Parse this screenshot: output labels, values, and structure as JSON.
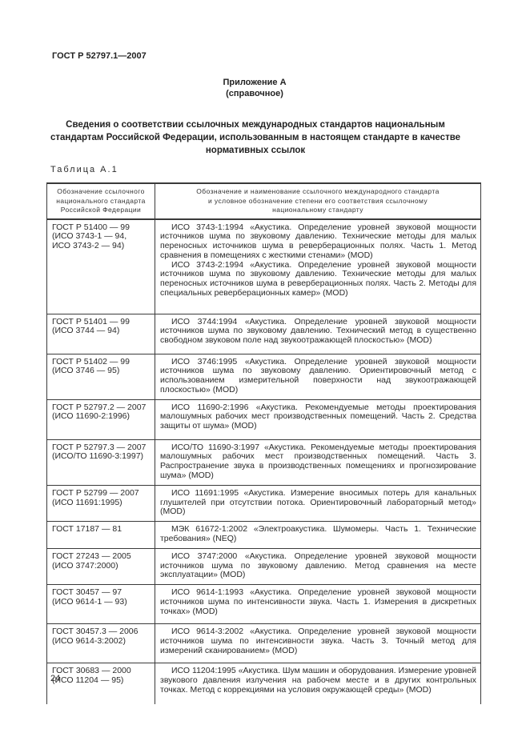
{
  "page": {
    "doc_code": "ГОСТ Р 52797.1—2007",
    "appendix_heading": "Приложение А",
    "appendix_kind": "(справочное)",
    "title": "Сведения о соответствии ссылочных международных стандартов национальным стандартам Российской Федерации, использованным в настоящем стандарте в качестве нормативных ссылок",
    "table_caption": "Таблица А.1",
    "page_number": "24"
  },
  "table": {
    "headers": [
      "Обозначение ссылочного\nнационального стандарта\nРоссийской Федерации",
      "Обозначение и наименование ссылочного международного стандарта\nи условное обозначение степени его соответствия ссылочному\nнациональному стандарту"
    ],
    "rows": [
      {
        "national": "ГОСТ Р 51400 — 99\n(ИСО 3743-1 — 94,\nИСО 3743-2 — 94)",
        "international": [
          "ИСО 3743-1:1994 «Акустика. Определение уровней звуковой мощности источников шума по звуковому давлению. Технические методы для малых переносных источников шума в реверберационных полях. Часть 1. Метод сравнения в помещениях с жесткими стенами» (MOD)",
          "ИСО 3743-2:1994 «Акустика. Определение уровней звуковой мощности источников шума по звуковому давлению. Технические методы для малых переносных источников шума в реверберационных полях. Часть 2. Методы для специальных реверберационных камер» (MOD)"
        ]
      },
      {
        "national": "ГОСТ Р 51401 — 99\n(ИСО 3744 — 94)",
        "international": [
          "ИСО 3744:1994 «Акустика. Определение уровней звуковой мощности источников шума по звуковому давлению. Технический метод в существенно свободном звуковом поле над звукоотражающей плоскостью» (MOD)"
        ]
      },
      {
        "national": "ГОСТ Р 51402 — 99\n(ИСО 3746 — 95)",
        "international": [
          "ИСО 3746:1995 «Акустика. Определение уровней звуковой мощности источников шума по звуковому давлению. Ориентировочный метод с использованием измерительной поверхности над звукоотражающей плоскостью» (MOD)"
        ]
      },
      {
        "national": "ГОСТ Р 52797.2 — 2007\n(ИСО 11690-2:1996)",
        "international": [
          "ИСО 11690-2:1996 «Акустика. Рекомендуемые методы проектирования малошумных рабочих мест производственных помещений. Часть 2. Средства защиты от шума» (MOD)"
        ]
      },
      {
        "national": "ГОСТ Р 52797.3 — 2007\n(ИСО/ТО 11690-3:1997)",
        "international": [
          "ИСО/ТО 11690-3:1997 «Акустика. Рекомендуемые методы проектирования малошумных рабочих мест производственных помещений. Часть 3. Распространение звука в производственных помещениях и прогнозирование шума» (MOD)"
        ]
      },
      {
        "national": "ГОСТ Р 52799 — 2007\n(ИСО 11691:1995)",
        "international": [
          "ИСО 11691:1995 «Акустика. Измерение вносимых потерь для канальных глушителей при отсутствии потока. Ориентировочный лабораторный метод» (MOD)"
        ]
      },
      {
        "national": "ГОСТ 17187 — 81",
        "international": [
          "МЭК 61672-1:2002 «Электроакустика. Шумомеры. Часть 1. Технические требования» (NEQ)"
        ]
      },
      {
        "national": "ГОСТ 27243 — 2005\n(ИСО 3747:2000)",
        "international": [
          "ИСО 3747:2000 «Акустика. Определение уровней звуковой мощности источников шума по звуковому давлению. Метод сравнения на месте эксплуатации» (MOD)"
        ]
      },
      {
        "national": "ГОСТ 30457 — 97\n(ИСО 9614-1 — 93)",
        "international": [
          "ИСО 9614-1:1993 «Акустика. Определение уровней звуковой мощности источников шума по интенсивности звука. Часть 1. Измерения в дискретных точках» (MOD)"
        ]
      },
      {
        "national": "ГОСТ 30457.3 — 2006\n(ИСО 9614-3:2002)",
        "international": [
          "ИСО 9614-3:2002 «Акустика. Определение уровней звуковой мощности источников шума по интенсивности звука. Часть 3. Точный метод для измерений сканированием» (MOD)"
        ]
      },
      {
        "national": "ГОСТ 30683 — 2000\n(ИСО 11204 — 95)",
        "international": [
          "ИСО 11204:1995 «Акустика. Шум машин и оборудования. Измерение уровней звукового давления излучения на рабочем месте и в других контрольных точках. Метод с коррекциями на условия окружающей среды» (MOD)"
        ]
      }
    ]
  }
}
